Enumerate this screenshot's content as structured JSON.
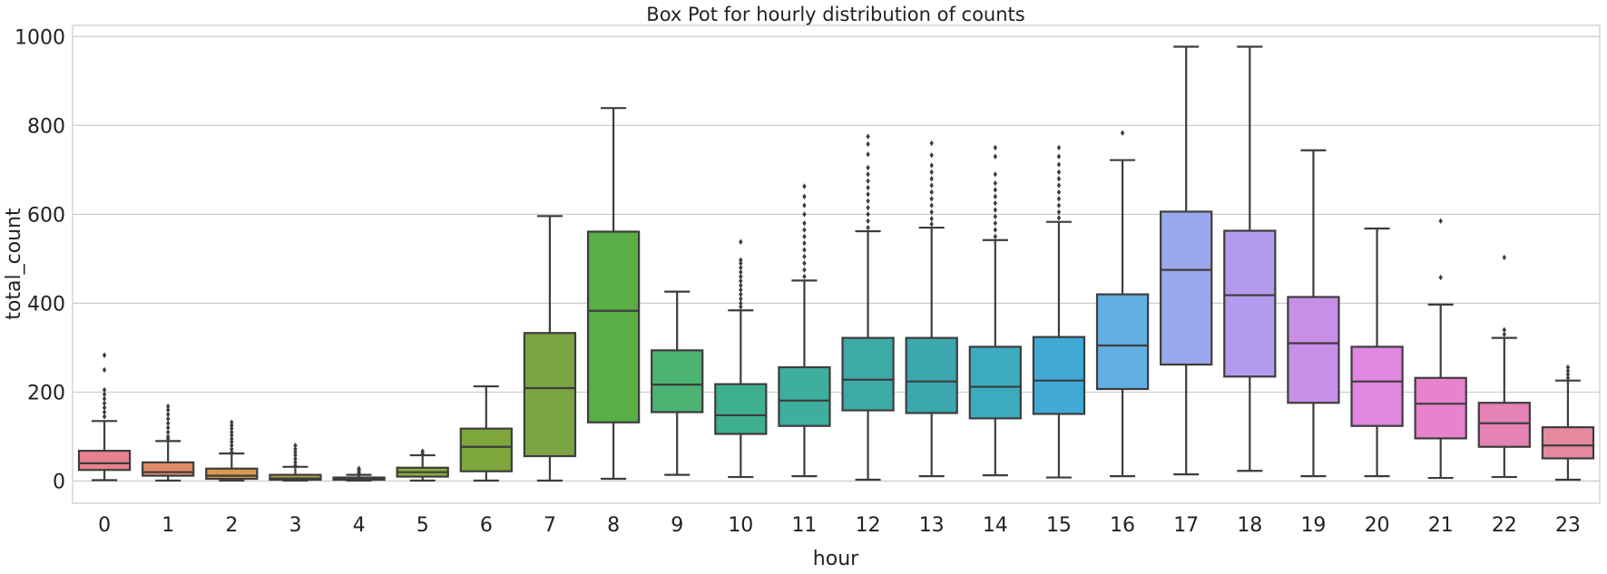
{
  "chart_data": {
    "type": "boxplot",
    "title": "Box Pot for hourly distribution of counts",
    "xlabel": "hour",
    "ylabel": "total_count",
    "ylim": [
      -50,
      1025
    ],
    "yticks": [
      0,
      200,
      400,
      600,
      800,
      1000
    ],
    "grid": "horizontal",
    "legend": "none",
    "categories": [
      "0",
      "1",
      "2",
      "3",
      "4",
      "5",
      "6",
      "7",
      "8",
      "9",
      "10",
      "11",
      "12",
      "13",
      "14",
      "15",
      "16",
      "17",
      "18",
      "19",
      "20",
      "21",
      "22",
      "23"
    ],
    "colors": [
      "#e8828e",
      "#e08a6a",
      "#d99a4a",
      "#b5a14a",
      "#9eab3c",
      "#8cae3a",
      "#7da63c",
      "#7aa442",
      "#59ae45",
      "#4db373",
      "#3eb08e",
      "#3eae9e",
      "#3eaaa8",
      "#3ba7ae",
      "#3cabc0",
      "#41a9d6",
      "#62aee3",
      "#9aa7ec",
      "#b49aee",
      "#c98ee8",
      "#df87e1",
      "#e882cf",
      "#e582b6",
      "#e589a0"
    ],
    "boxes": [
      {
        "whislo": 2,
        "q1": 25,
        "med": 40,
        "q3": 68,
        "whishi": 135,
        "fliers": [
          145,
          155,
          165,
          175,
          185,
          195,
          205,
          250,
          283
        ]
      },
      {
        "whislo": 1,
        "q1": 12,
        "med": 20,
        "q3": 42,
        "whishi": 90,
        "fliers": [
          95,
          100,
          110,
          120,
          130,
          140,
          150,
          160,
          168
        ]
      },
      {
        "whislo": 1,
        "q1": 5,
        "med": 12,
        "q3": 28,
        "whishi": 62,
        "fliers": [
          65,
          72,
          80,
          88,
          95,
          103,
          110,
          118,
          125,
          132
        ]
      },
      {
        "whislo": 1,
        "q1": 3,
        "med": 6,
        "q3": 14,
        "whishi": 32,
        "fliers": [
          35,
          42,
          50,
          58,
          65,
          72,
          80
        ]
      },
      {
        "whislo": 1,
        "q1": 3,
        "med": 5,
        "q3": 8,
        "whishi": 14,
        "fliers": [
          17,
          21,
          25,
          28
        ]
      },
      {
        "whislo": 1,
        "q1": 10,
        "med": 20,
        "q3": 30,
        "whishi": 58,
        "fliers": [
          62,
          67
        ]
      },
      {
        "whislo": 1,
        "q1": 22,
        "med": 77,
        "q3": 118,
        "whishi": 213,
        "fliers": []
      },
      {
        "whislo": 1,
        "q1": 56,
        "med": 209,
        "q3": 333,
        "whishi": 596,
        "fliers": []
      },
      {
        "whislo": 5,
        "q1": 132,
        "med": 383,
        "q3": 561,
        "whishi": 839,
        "fliers": []
      },
      {
        "whislo": 14,
        "q1": 155,
        "med": 217,
        "q3": 294,
        "whishi": 426,
        "fliers": []
      },
      {
        "whislo": 9,
        "q1": 106,
        "med": 148,
        "q3": 218,
        "whishi": 384,
        "fliers": [
          392,
          400,
          410,
          420,
          430,
          440,
          450,
          460,
          470,
          480,
          490,
          497,
          538
        ]
      },
      {
        "whislo": 11,
        "q1": 124,
        "med": 181,
        "q3": 256,
        "whishi": 451,
        "fliers": [
          460,
          475,
          490,
          505,
          520,
          535,
          550,
          565,
          580,
          600,
          620,
          640,
          663
        ]
      },
      {
        "whislo": 3,
        "q1": 159,
        "med": 228,
        "q3": 322,
        "whishi": 562,
        "fliers": [
          570,
          585,
          600,
          615,
          630,
          645,
          660,
          675,
          690,
          705,
          735,
          758,
          775
        ]
      },
      {
        "whislo": 11,
        "q1": 153,
        "med": 224,
        "q3": 322,
        "whishi": 570,
        "fliers": [
          578,
          590,
          605,
          620,
          635,
          650,
          665,
          680,
          695,
          710,
          733,
          760
        ]
      },
      {
        "whislo": 13,
        "q1": 141,
        "med": 212,
        "q3": 302,
        "whishi": 542,
        "fliers": [
          550,
          565,
          580,
          595,
          610,
          625,
          640,
          655,
          670,
          690,
          730,
          750
        ]
      },
      {
        "whislo": 8,
        "q1": 151,
        "med": 226,
        "q3": 324,
        "whishi": 583,
        "fliers": [
          592,
          605,
          620,
          635,
          650,
          665,
          680,
          695,
          712,
          730,
          750
        ]
      },
      {
        "whislo": 11,
        "q1": 207,
        "med": 305,
        "q3": 420,
        "whishi": 722,
        "fliers": [
          783
        ]
      },
      {
        "whislo": 15,
        "q1": 262,
        "med": 475,
        "q3": 606,
        "whishi": 977,
        "fliers": []
      },
      {
        "whislo": 23,
        "q1": 235,
        "med": 418,
        "q3": 563,
        "whishi": 977,
        "fliers": []
      },
      {
        "whislo": 11,
        "q1": 176,
        "med": 310,
        "q3": 414,
        "whishi": 744,
        "fliers": []
      },
      {
        "whislo": 11,
        "q1": 124,
        "med": 224,
        "q3": 302,
        "whishi": 568,
        "fliers": []
      },
      {
        "whislo": 7,
        "q1": 96,
        "med": 174,
        "q3": 232,
        "whishi": 397,
        "fliers": [
          458,
          585
        ]
      },
      {
        "whislo": 9,
        "q1": 77,
        "med": 130,
        "q3": 176,
        "whishi": 322,
        "fliers": [
          330,
          340,
          503
        ]
      },
      {
        "whislo": 3,
        "q1": 51,
        "med": 80,
        "q3": 121,
        "whishi": 226,
        "fliers": [
          232,
          240,
          248,
          256
        ]
      }
    ]
  }
}
